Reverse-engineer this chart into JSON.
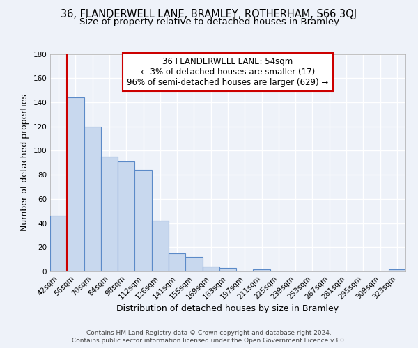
{
  "title": "36, FLANDERWELL LANE, BRAMLEY, ROTHERHAM, S66 3QJ",
  "subtitle": "Size of property relative to detached houses in Bramley",
  "xlabel": "Distribution of detached houses by size in Bramley",
  "ylabel": "Number of detached properties",
  "bin_labels": [
    "42sqm",
    "56sqm",
    "70sqm",
    "84sqm",
    "98sqm",
    "112sqm",
    "126sqm",
    "141sqm",
    "155sqm",
    "169sqm",
    "183sqm",
    "197sqm",
    "211sqm",
    "225sqm",
    "239sqm",
    "253sqm",
    "267sqm",
    "281sqm",
    "295sqm",
    "309sqm",
    "323sqm"
  ],
  "bar_values": [
    46,
    144,
    120,
    95,
    91,
    84,
    42,
    15,
    12,
    4,
    3,
    0,
    2,
    0,
    0,
    0,
    0,
    0,
    0,
    0,
    2
  ],
  "bar_color": "#c8d8ee",
  "bar_edge_color": "#5b8ac8",
  "ylim": [
    0,
    180
  ],
  "yticks": [
    0,
    20,
    40,
    60,
    80,
    100,
    120,
    140,
    160,
    180
  ],
  "property_line_label": "36 FLANDERWELL LANE: 54sqm",
  "annotation_line2": "← 3% of detached houses are smaller (17)",
  "annotation_line3": "96% of semi-detached houses are larger (629) →",
  "annotation_box_color": "#ffffff",
  "annotation_box_edge_color": "#cc0000",
  "red_line_x": 0.5,
  "footer_line1": "Contains HM Land Registry data © Crown copyright and database right 2024.",
  "footer_line2": "Contains public sector information licensed under the Open Government Licence v3.0.",
  "background_color": "#eef2f9",
  "grid_color": "#ffffff",
  "title_fontsize": 10.5,
  "subtitle_fontsize": 9.5,
  "axis_label_fontsize": 9,
  "tick_fontsize": 7.5,
  "annotation_fontsize": 8.5,
  "footer_fontsize": 6.5
}
